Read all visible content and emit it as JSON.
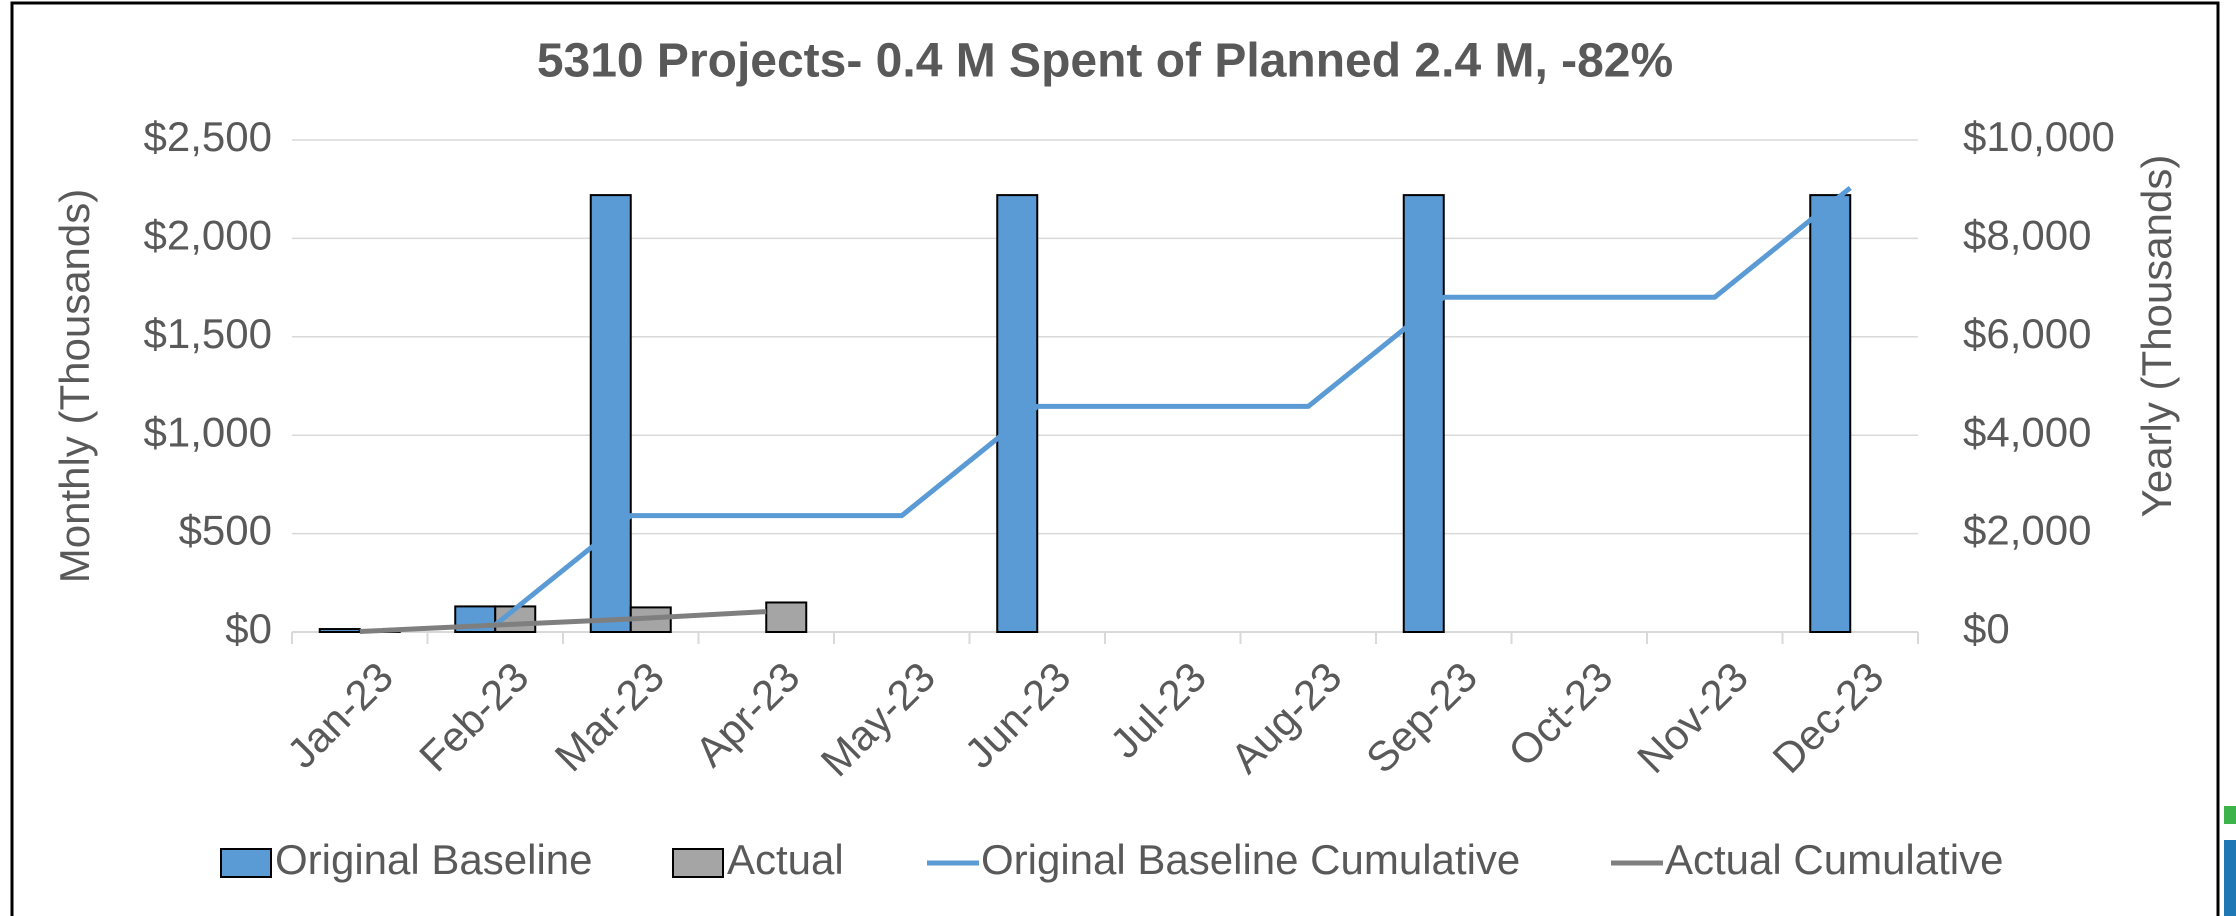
{
  "chart_data": {
    "type": "bar",
    "title": "5310 Projects- 0.4 M Spent of Planned 2.4 M, -82%",
    "ylabel": "Monthly (Thousands)",
    "y2label": "Yearly (Thousands)",
    "categories": [
      "Jan-23",
      "Feb-23",
      "Mar-23",
      "Apr-23",
      "May-23",
      "Jun-23",
      "Jul-23",
      "Aug-23",
      "Sep-23",
      "Oct-23",
      "Nov-23",
      "Dec-23"
    ],
    "series": [
      {
        "name": "Original Baseline",
        "type": "bar",
        "color": "#5b9bd5",
        "values": [
          15,
          130,
          2220,
          0,
          0,
          2220,
          0,
          0,
          2220,
          0,
          0,
          2220
        ]
      },
      {
        "name": "Actual",
        "type": "bar",
        "color": "#a5a5a5",
        "values": [
          10,
          130,
          125,
          150,
          null,
          null,
          null,
          null,
          null,
          null,
          null,
          null
        ]
      },
      {
        "name": "Original Baseline Cumulative",
        "type": "line",
        "axis": "y2",
        "color": "#5b9bd5",
        "values": [
          null,
          145,
          2365,
          2365,
          2365,
          4585,
          4585,
          4585,
          6805,
          6805,
          6805,
          9025
        ]
      },
      {
        "name": "Actual Cumulative",
        "type": "line",
        "axis": "y2",
        "color": "#7f7f7f",
        "values": [
          10,
          140,
          265,
          415,
          null,
          null,
          null,
          null,
          null,
          null,
          null,
          null
        ]
      }
    ],
    "ylim": [
      0,
      2500
    ],
    "yticks": [
      {
        "value": 0,
        "label": "$0"
      },
      {
        "value": 500,
        "label": "$500"
      },
      {
        "value": 1000,
        "label": "$1,000"
      },
      {
        "value": 1500,
        "label": "$1,500"
      },
      {
        "value": 2000,
        "label": "$2,000"
      },
      {
        "value": 2500,
        "label": "$2,500"
      }
    ],
    "y2lim": [
      0,
      10000
    ],
    "y2ticks": [
      {
        "value": 0,
        "label": "$0"
      },
      {
        "value": 2000,
        "label": "$2,000"
      },
      {
        "value": 4000,
        "label": "$4,000"
      },
      {
        "value": 6000,
        "label": "$6,000"
      },
      {
        "value": 8000,
        "label": "$8,000"
      },
      {
        "value": 10000,
        "label": "$10,000"
      }
    ],
    "grid": true,
    "legend": "bottom"
  }
}
